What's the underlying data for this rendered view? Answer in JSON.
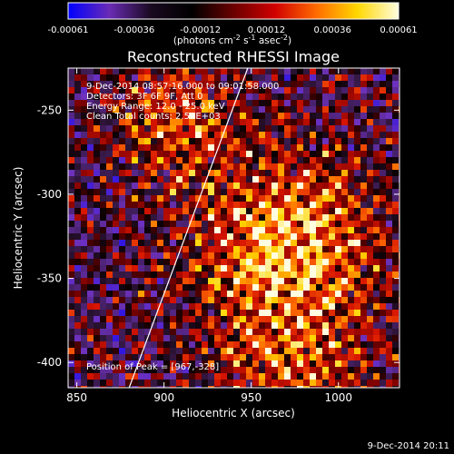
{
  "colorbar": {
    "ticks": [
      "-0.00061",
      "-0.00036",
      "-0.00012",
      "0.00012",
      "0.00036",
      "0.00061"
    ],
    "units_html": "(photons cm<tspan baseline-shift='super' font-size='8'>-2</tspan> s<tspan baseline-shift='super' font-size='8'>-1</tspan> asec<tspan baseline-shift='super' font-size='8'>-2</tspan>)",
    "colors": [
      "#0000ff",
      "#6a2bb5",
      "#1a0a20",
      "#000000",
      "#6a0000",
      "#d00000",
      "#ff6a00",
      "#ffd700",
      "#fffde0"
    ]
  },
  "chart_data": {
    "type": "heatmap",
    "title": "Reconstructed RHESSI Image",
    "xlabel": "Heliocentric X (arcsec)",
    "ylabel": "Heliocentric Y (arcsec)",
    "xlim": [
      845,
      1035
    ],
    "ylim": [
      -415,
      -225
    ],
    "x_ticks": [
      850,
      900,
      950,
      1000
    ],
    "y_ticks": [
      -250,
      -300,
      -350,
      -400
    ],
    "annotations": [
      "9-Dec-2014 08:57:16.000 to 09:01:58.000",
      "Detectors: 3F 6F 9F, Att 0",
      "Energy Range: 12.0 - 25.0 keV",
      "Clean      Total counts: 2.50E+03"
    ],
    "peak_label": "Position of Peak = [967,-328]",
    "peak": [
      967,
      -328
    ],
    "limb_line": {
      "x": [
        880,
        948
      ],
      "y": [
        -415,
        -225
      ]
    },
    "value_range": [
      -0.00061,
      0.00061
    ]
  },
  "footer": {
    "timestamp": "9-Dec-2014 20:11"
  }
}
